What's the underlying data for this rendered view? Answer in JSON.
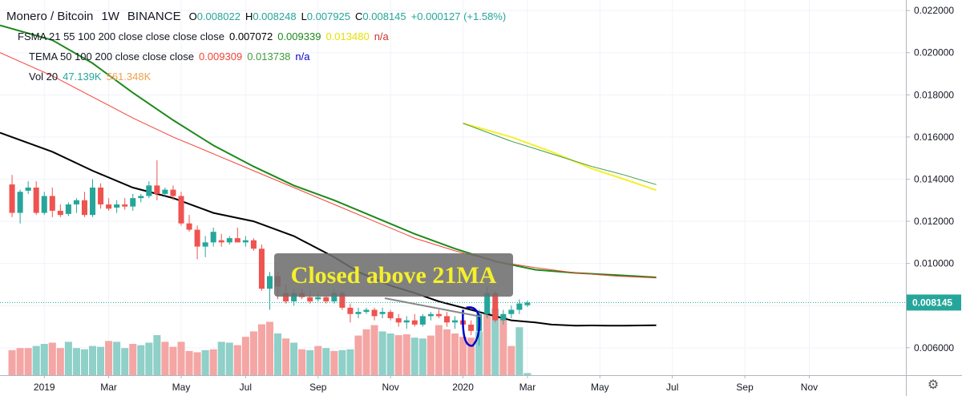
{
  "header": {
    "title": "Monero / Bitcoin",
    "interval": "1W",
    "exchange": "BINANCE",
    "ohlc": {
      "o_label": "O",
      "o": "0.008022",
      "h_label": "H",
      "h": "0.008248",
      "l_label": "L",
      "l": "0.007925",
      "c_label": "C",
      "c": "0.008145",
      "change": "+0.000127 (+1.58%)"
    }
  },
  "indicators": {
    "fsma": {
      "label": "FSMA 21 55 100 200 close close close close",
      "v1": "0.007072",
      "v2": "0.009339",
      "v3": "0.013480",
      "v4": "n/a"
    },
    "tema": {
      "label": "TEMA 50 100 200 close close close",
      "v1": "0.009309",
      "v2": "0.013738",
      "v3": "n/a"
    },
    "vol": {
      "label": "Vol 20",
      "v1": "47.139K",
      "v2": "561.348K"
    }
  },
  "annotation": {
    "text": "Closed above 21MA"
  },
  "colors": {
    "up": "#26a69a",
    "down": "#ef5350",
    "up_vol": "#8fd0c8",
    "down_vol": "#f4a6a4",
    "ma21": "#000000",
    "ma55": "#1b8a1b",
    "ma100": "#f5f02a",
    "tema_red": "#f44336",
    "tema_green": "#3f9b3f",
    "tema_blue": "#0000cc",
    "price_tag": "#26a69a"
  },
  "settings_icon": "gear-icon",
  "chart_data": {
    "type": "candlestick",
    "interval": "1W",
    "ylim": [
      0.0047,
      0.0225
    ],
    "y_ticks": [
      "0.006000",
      "0.008000",
      "0.010000",
      "0.012000",
      "0.014000",
      "0.016000",
      "0.018000",
      "0.020000",
      "0.022000"
    ],
    "last_price": "0.008145",
    "x_labels": [
      {
        "label": "2019",
        "week": 4
      },
      {
        "label": "Mar",
        "week": 12
      },
      {
        "label": "May",
        "week": 21
      },
      {
        "label": "Jul",
        "week": 29
      },
      {
        "label": "Sep",
        "week": 38
      },
      {
        "label": "Nov",
        "week": 47
      },
      {
        "label": "2020",
        "week": 56
      },
      {
        "label": "Mar",
        "week": 64
      },
      {
        "label": "May",
        "week": 73
      },
      {
        "label": "Jul",
        "week": 82
      },
      {
        "label": "Sep",
        "week": 91
      },
      {
        "label": "Nov",
        "week": 99
      }
    ],
    "week_range": [
      -1.5,
      111
    ],
    "candles": [
      [
        0.01375,
        0.0142,
        0.0122,
        0.0124
      ],
      [
        0.0124,
        0.0135,
        0.0119,
        0.0134
      ],
      [
        0.01345,
        0.0139,
        0.0133,
        0.0136
      ],
      [
        0.0136,
        0.0139,
        0.0123,
        0.0124
      ],
      [
        0.0124,
        0.0134,
        0.0123,
        0.0132
      ],
      [
        0.0132,
        0.0136,
        0.0122,
        0.0125
      ],
      [
        0.0125,
        0.0128,
        0.0122,
        0.0123
      ],
      [
        0.01235,
        0.0129,
        0.01225,
        0.0128
      ],
      [
        0.0128,
        0.0131,
        0.0124,
        0.013
      ],
      [
        0.013,
        0.0134,
        0.0122,
        0.0123
      ],
      [
        0.0123,
        0.014,
        0.0122,
        0.0136
      ],
      [
        0.0136,
        0.0138,
        0.0126,
        0.0128
      ],
      [
        0.0128,
        0.0131,
        0.0125,
        0.0126
      ],
      [
        0.01265,
        0.013,
        0.0124,
        0.0128
      ],
      [
        0.0128,
        0.0131,
        0.01255,
        0.0127
      ],
      [
        0.0127,
        0.0133,
        0.0125,
        0.0131
      ],
      [
        0.0131,
        0.0133,
        0.0129,
        0.0132
      ],
      [
        0.0132,
        0.0139,
        0.0131,
        0.0137
      ],
      [
        0.0137,
        0.0149,
        0.013,
        0.0133
      ],
      [
        0.0133,
        0.0136,
        0.0132,
        0.0135
      ],
      [
        0.0135,
        0.0137,
        0.013,
        0.0132
      ],
      [
        0.0132,
        0.0134,
        0.0118,
        0.0119
      ],
      [
        0.0119,
        0.0123,
        0.0115,
        0.0116
      ],
      [
        0.0116,
        0.0118,
        0.0102,
        0.0108
      ],
      [
        0.0108,
        0.0113,
        0.0103,
        0.011
      ],
      [
        0.011,
        0.0117,
        0.0108,
        0.0115
      ],
      [
        0.0111,
        0.0114,
        0.0108,
        0.011
      ],
      [
        0.011,
        0.0113,
        0.0109,
        0.0112
      ],
      [
        0.0112,
        0.0117,
        0.011,
        0.011
      ],
      [
        0.011,
        0.0113,
        0.0108,
        0.0111
      ],
      [
        0.0111,
        0.0112,
        0.0106,
        0.0107
      ],
      [
        0.0107,
        0.0109,
        0.0087,
        0.0088
      ],
      [
        0.0088,
        0.0096,
        0.0078,
        0.0094
      ],
      [
        0.0094,
        0.0096,
        0.0083,
        0.0089
      ],
      [
        0.0086,
        0.009,
        0.0081,
        0.0082
      ],
      [
        0.0082,
        0.0088,
        0.008,
        0.0086
      ],
      [
        0.0086,
        0.0088,
        0.0083,
        0.0084
      ],
      [
        0.0084,
        0.0087,
        0.0081,
        0.0082
      ],
      [
        0.0083,
        0.0086,
        0.0082,
        0.0084
      ],
      [
        0.0084,
        0.0085,
        0.0081,
        0.0082
      ],
      [
        0.0082,
        0.0088,
        0.0081,
        0.0086
      ],
      [
        0.0086,
        0.0087,
        0.0078,
        0.0079
      ],
      [
        0.0079,
        0.0081,
        0.0072,
        0.0076
      ],
      [
        0.0076,
        0.0079,
        0.0074,
        0.0077
      ],
      [
        0.0077,
        0.0079,
        0.0076,
        0.0078
      ],
      [
        0.0078,
        0.0079,
        0.0073,
        0.0075
      ],
      [
        0.0076,
        0.0079,
        0.0074,
        0.0077
      ],
      [
        0.0077,
        0.0078,
        0.0073,
        0.0074
      ],
      [
        0.0074,
        0.0076,
        0.007,
        0.0072
      ],
      [
        0.0072,
        0.0075,
        0.0069,
        0.0073
      ],
      [
        0.0073,
        0.0076,
        0.007,
        0.0071
      ],
      [
        0.0071,
        0.0076,
        0.007,
        0.0075
      ],
      [
        0.0075,
        0.0077,
        0.0073,
        0.0076
      ],
      [
        0.0076,
        0.0078,
        0.0074,
        0.0075
      ],
      [
        0.0075,
        0.0077,
        0.007,
        0.0072
      ],
      [
        0.0072,
        0.0075,
        0.0069,
        0.0073
      ],
      [
        0.0073,
        0.0075,
        0.0069,
        0.0071
      ],
      [
        0.0071,
        0.0073,
        0.0066,
        0.0068
      ],
      [
        0.0068,
        0.0078,
        0.0061,
        0.0076
      ],
      [
        0.0076,
        0.0089,
        0.0074,
        0.0086
      ],
      [
        0.0086,
        0.0087,
        0.0072,
        0.0073
      ],
      [
        0.0073,
        0.0078,
        0.0071,
        0.0076
      ],
      [
        0.0076,
        0.008,
        0.0074,
        0.0078
      ],
      [
        0.0078,
        0.0083,
        0.0076,
        0.0081
      ],
      [
        0.00802,
        0.00825,
        0.00793,
        0.00815
      ]
    ],
    "volumes": [
      [
        60,
        0
      ],
      [
        65,
        0
      ],
      [
        65,
        0
      ],
      [
        70,
        1
      ],
      [
        75,
        1
      ],
      [
        78,
        0
      ],
      [
        65,
        0
      ],
      [
        80,
        1
      ],
      [
        65,
        1
      ],
      [
        62,
        1
      ],
      [
        70,
        1
      ],
      [
        68,
        1
      ],
      [
        82,
        0
      ],
      [
        80,
        1
      ],
      [
        65,
        1
      ],
      [
        75,
        0
      ],
      [
        72,
        1
      ],
      [
        78,
        1
      ],
      [
        96,
        1
      ],
      [
        80,
        0
      ],
      [
        68,
        0
      ],
      [
        80,
        0
      ],
      [
        58,
        0
      ],
      [
        55,
        0
      ],
      [
        60,
        1
      ],
      [
        62,
        0
      ],
      [
        80,
        1
      ],
      [
        78,
        1
      ],
      [
        72,
        0
      ],
      [
        92,
        0
      ],
      [
        105,
        0
      ],
      [
        122,
        0
      ],
      [
        128,
        0
      ],
      [
        100,
        1
      ],
      [
        88,
        0
      ],
      [
        78,
        1
      ],
      [
        62,
        0
      ],
      [
        60,
        1
      ],
      [
        70,
        0
      ],
      [
        65,
        1
      ],
      [
        58,
        0
      ],
      [
        60,
        1
      ],
      [
        62,
        1
      ],
      [
        95,
        0
      ],
      [
        110,
        0
      ],
      [
        120,
        0
      ],
      [
        105,
        1
      ],
      [
        100,
        1
      ],
      [
        96,
        0
      ],
      [
        98,
        0
      ],
      [
        90,
        1
      ],
      [
        88,
        1
      ],
      [
        95,
        0
      ],
      [
        120,
        0
      ],
      [
        110,
        0
      ],
      [
        100,
        0
      ],
      [
        92,
        0
      ],
      [
        90,
        0
      ],
      [
        105,
        1
      ],
      [
        150,
        0
      ],
      [
        160,
        1
      ],
      [
        140,
        0
      ],
      [
        70,
        0
      ],
      [
        115,
        1
      ],
      [
        5,
        1
      ]
    ],
    "series": [
      {
        "name": "FSMA 21",
        "color": "#000000",
        "points": [
          [
            -1.5,
            0.0162
          ],
          [
            5,
            0.0153
          ],
          [
            10,
            0.0144
          ],
          [
            15,
            0.0136
          ],
          [
            20,
            0.0131
          ],
          [
            25,
            0.0124
          ],
          [
            30,
            0.012
          ],
          [
            35,
            0.0113
          ],
          [
            40,
            0.0103
          ],
          [
            43,
            0.0096
          ],
          [
            47,
            0.00895
          ],
          [
            50,
            0.0086
          ],
          [
            53,
            0.0082
          ],
          [
            56,
            0.0079
          ],
          [
            59,
            0.0076
          ],
          [
            62,
            0.0073
          ],
          [
            65,
            0.0072
          ],
          [
            67,
            0.0071
          ],
          [
            70,
            0.00705
          ],
          [
            72,
            0.00706
          ],
          [
            74,
            0.00705
          ],
          [
            76,
            0.00705
          ],
          [
            78,
            0.00706
          ],
          [
            80,
            0.00707
          ]
        ]
      },
      {
        "name": "FSMA 55",
        "color": "#1b8a1b",
        "points": [
          [
            -1.5,
            0.0213
          ],
          [
            5,
            0.0206
          ],
          [
            10,
            0.0195
          ],
          [
            15,
            0.0181
          ],
          [
            20,
            0.0168
          ],
          [
            25,
            0.0156
          ],
          [
            30,
            0.0146
          ],
          [
            35,
            0.0137
          ],
          [
            40,
            0.013
          ],
          [
            45,
            0.0122
          ],
          [
            50,
            0.0114
          ],
          [
            55,
            0.0107
          ],
          [
            60,
            0.0101
          ],
          [
            65,
            0.0097
          ],
          [
            70,
            0.00955
          ],
          [
            75,
            0.00945
          ],
          [
            80,
            0.00934
          ]
        ]
      },
      {
        "name": "FSMA 100",
        "color": "#f5f02a",
        "points": [
          [
            56,
            0.01665
          ],
          [
            62,
            0.016
          ],
          [
            67,
            0.0153
          ],
          [
            72,
            0.0145
          ],
          [
            76,
            0.014
          ],
          [
            80,
            0.01348
          ]
        ]
      },
      {
        "name": "TEMA 50",
        "color": "#f44336",
        "points": [
          [
            -1.5,
            0.02
          ],
          [
            5,
            0.0189
          ],
          [
            10,
            0.0179
          ],
          [
            15,
            0.0169
          ],
          [
            20,
            0.016
          ],
          [
            25,
            0.0152
          ],
          [
            30,
            0.0144
          ],
          [
            35,
            0.0136
          ],
          [
            40,
            0.0128
          ],
          [
            45,
            0.012
          ],
          [
            50,
            0.0112
          ],
          [
            55,
            0.0106
          ],
          [
            60,
            0.0101
          ],
          [
            65,
            0.0098
          ],
          [
            70,
            0.00955
          ],
          [
            75,
            0.0094
          ],
          [
            80,
            0.00931
          ]
        ]
      },
      {
        "name": "TEMA 100",
        "color": "#3f9b3f",
        "points": [
          [
            56,
            0.01665
          ],
          [
            62,
            0.0158
          ],
          [
            67,
            0.0152
          ],
          [
            72,
            0.0146
          ],
          [
            76,
            0.0142
          ],
          [
            80,
            0.01374
          ]
        ]
      }
    ]
  }
}
